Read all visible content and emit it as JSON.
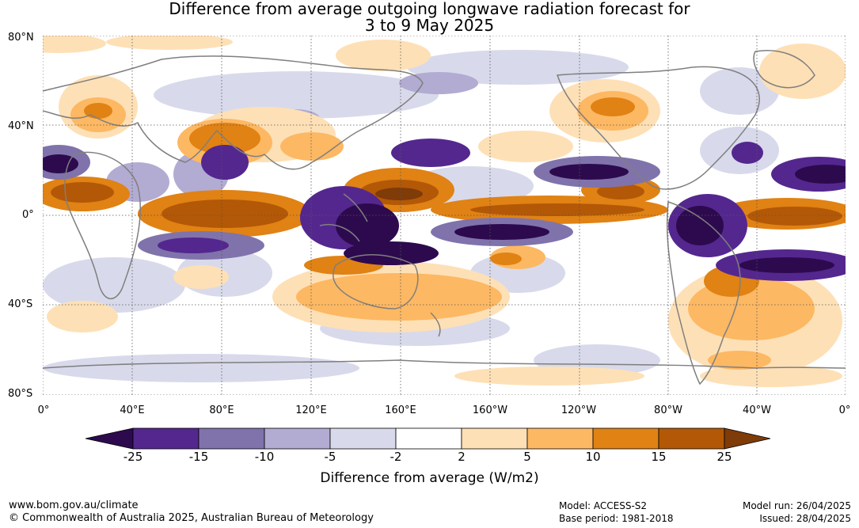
{
  "title": {
    "line1": "Difference from average outgoing longwave radiation forecast for",
    "line2": "3 to 9 May 2025"
  },
  "map": {
    "lat_labels": [
      "80°N",
      "40°N",
      "0°",
      "40°S",
      "80°S"
    ],
    "lon_labels": [
      "0°",
      "40°E",
      "80°E",
      "120°E",
      "160°E",
      "160°W",
      "120°W",
      "80°W",
      "40°W",
      "0°"
    ]
  },
  "colorbar": {
    "ticks": [
      "-25",
      "-15",
      "-10",
      "-5",
      "-2",
      "2",
      "5",
      "10",
      "15",
      "25"
    ],
    "colors": [
      "#2d0a4e",
      "#54278f",
      "#8073ac",
      "#b2abd2",
      "#d8daeb",
      "#ffffff",
      "#fee0b6",
      "#fdb863",
      "#e08214",
      "#b35806",
      "#7f3b08"
    ],
    "label": "Difference from average (W/m2)"
  },
  "footer": {
    "website": "www.bom.gov.au/climate",
    "copyright": "© Commonwealth of Australia 2025, Australian Bureau of Meteorology",
    "model": "Model: ACCESS-S2",
    "base_period": "Base period: 1981-2018",
    "model_run": "Model run: 26/04/2025",
    "issued": "Issued: 28/04/2025"
  }
}
